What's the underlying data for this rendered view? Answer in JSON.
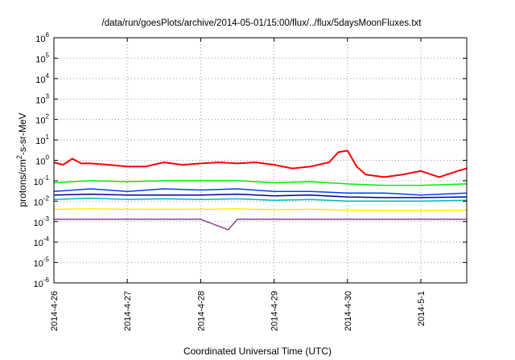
{
  "chart_data": {
    "type": "line",
    "title": "/data/run/goesPlots/archive/2014-05-01/15:00/flux/../flux/5daysMoonFluxes.txt",
    "xlabel": "Coordinated Universal Time (UTC)",
    "ylabel": {
      "base": "protons/cm",
      "sup": "2",
      "tail": "-s-sr-MeV"
    },
    "y_scale": "log",
    "ylim": [
      1e-06,
      1000000.0
    ],
    "xlim": [
      "2014-04-26 00:00",
      "2014-05-01 15:00"
    ],
    "grid": true,
    "legend": "none",
    "y_ticks": [
      {
        "base": "10",
        "exp": "-6",
        "value": 1e-06
      },
      {
        "base": "10",
        "exp": "-5",
        "value": 1e-05
      },
      {
        "base": "10",
        "exp": "-4",
        "value": 0.0001
      },
      {
        "base": "10",
        "exp": "-3",
        "value": 0.001
      },
      {
        "base": "10",
        "exp": "-2",
        "value": 0.01
      },
      {
        "base": "10",
        "exp": "-1",
        "value": 0.1
      },
      {
        "base": "10",
        "exp": "0",
        "value": 1
      },
      {
        "base": "10",
        "exp": "1",
        "value": 10.0
      },
      {
        "base": "10",
        "exp": "2",
        "value": 100.0
      },
      {
        "base": "10",
        "exp": "3",
        "value": 1000.0
      },
      {
        "base": "10",
        "exp": "4",
        "value": 10000.0
      },
      {
        "base": "10",
        "exp": "5",
        "value": 100000.0
      },
      {
        "base": "10",
        "exp": "6",
        "value": 1000000.0
      }
    ],
    "x_ticks": [
      {
        "label": "2014-4-26",
        "value": "2014-04-26 00:00"
      },
      {
        "label": "2014-4-27",
        "value": "2014-04-27 00:00"
      },
      {
        "label": "2014-4-28",
        "value": "2014-04-28 00:00"
      },
      {
        "label": "2014-4-29",
        "value": "2014-04-29 00:00"
      },
      {
        "label": "2014-4-30",
        "value": "2014-04-30 00:00"
      },
      {
        "label": "2014-5-1",
        "value": "2014-05-01 00:00"
      }
    ],
    "series": [
      {
        "color": "#ff0000",
        "width": 2,
        "x": [
          "2014-04-26 00:00",
          "2014-04-26 03:00",
          "2014-04-26 06:00",
          "2014-04-26 09:00",
          "2014-04-26 12:00",
          "2014-04-26 18:00",
          "2014-04-27 00:00",
          "2014-04-27 06:00",
          "2014-04-27 12:00",
          "2014-04-27 18:00",
          "2014-04-28 00:00",
          "2014-04-28 06:00",
          "2014-04-28 12:00",
          "2014-04-28 18:00",
          "2014-04-29 00:00",
          "2014-04-29 06:00",
          "2014-04-29 12:00",
          "2014-04-29 18:00",
          "2014-04-29 21:00",
          "2014-04-30 00:00",
          "2014-04-30 03:00",
          "2014-04-30 06:00",
          "2014-04-30 12:00",
          "2014-04-30 18:00",
          "2014-05-01 00:00",
          "2014-05-01 06:00",
          "2014-05-01 12:00",
          "2014-05-01 15:00"
        ],
        "y": [
          0.8,
          0.6,
          1.2,
          0.7,
          0.7,
          0.6,
          0.5,
          0.5,
          0.8,
          0.6,
          0.7,
          0.8,
          0.7,
          0.8,
          0.6,
          0.4,
          0.5,
          0.8,
          2.5,
          3,
          0.5,
          0.2,
          0.15,
          0.2,
          0.3,
          0.15,
          0.3,
          0.4
        ]
      },
      {
        "color": "#00ee00",
        "width": 1.5,
        "x": [
          "2014-04-26 00:00",
          "2014-04-26 12:00",
          "2014-04-27 00:00",
          "2014-04-27 12:00",
          "2014-04-28 00:00",
          "2014-04-28 12:00",
          "2014-04-29 00:00",
          "2014-04-29 12:00",
          "2014-04-30 00:00",
          "2014-04-30 12:00",
          "2014-05-01 00:00",
          "2014-05-01 15:00"
        ],
        "y": [
          0.08,
          0.1,
          0.09,
          0.1,
          0.1,
          0.1,
          0.08,
          0.09,
          0.07,
          0.06,
          0.06,
          0.07
        ]
      },
      {
        "color": "#0040ff",
        "width": 1.5,
        "x": [
          "2014-04-26 00:00",
          "2014-04-26 12:00",
          "2014-04-27 00:00",
          "2014-04-27 12:00",
          "2014-04-28 00:00",
          "2014-04-28 12:00",
          "2014-04-29 00:00",
          "2014-04-29 12:00",
          "2014-04-30 00:00",
          "2014-04-30 12:00",
          "2014-05-01 00:00",
          "2014-05-01 15:00"
        ],
        "y": [
          0.03,
          0.04,
          0.03,
          0.04,
          0.035,
          0.04,
          0.03,
          0.03,
          0.025,
          0.025,
          0.02,
          0.025
        ]
      },
      {
        "color": "#00bbbb",
        "width": 1.5,
        "x": [
          "2014-04-26 00:00",
          "2014-04-26 12:00",
          "2014-04-27 00:00",
          "2014-04-27 12:00",
          "2014-04-28 00:00",
          "2014-04-28 12:00",
          "2014-04-29 00:00",
          "2014-04-29 12:00",
          "2014-04-30 00:00",
          "2014-04-30 12:00",
          "2014-05-01 00:00",
          "2014-05-01 15:00"
        ],
        "y": [
          0.012,
          0.014,
          0.012,
          0.013,
          0.012,
          0.013,
          0.011,
          0.012,
          0.01,
          0.01,
          0.01,
          0.011
        ]
      },
      {
        "color": "#000099",
        "width": 1.5,
        "x": [
          "2014-04-26 00:00",
          "2014-04-26 12:00",
          "2014-04-27 00:00",
          "2014-04-27 12:00",
          "2014-04-28 00:00",
          "2014-04-28 12:00",
          "2014-04-29 00:00",
          "2014-04-29 12:00",
          "2014-04-30 00:00",
          "2014-04-30 12:00",
          "2014-05-01 00:00",
          "2014-05-01 15:00"
        ],
        "y": [
          0.02,
          0.022,
          0.02,
          0.02,
          0.02,
          0.022,
          0.018,
          0.02,
          0.016,
          0.015,
          0.015,
          0.016
        ]
      },
      {
        "color": "#ffee00",
        "width": 1.5,
        "x": [
          "2014-04-26 00:00",
          "2014-04-26 12:00",
          "2014-04-27 00:00",
          "2014-04-27 12:00",
          "2014-04-28 00:00",
          "2014-04-28 12:00",
          "2014-04-29 00:00",
          "2014-04-29 12:00",
          "2014-04-30 00:00",
          "2014-04-30 12:00",
          "2014-05-01 00:00",
          "2014-05-01 15:00"
        ],
        "y": [
          0.004,
          0.0042,
          0.004,
          0.0041,
          0.004,
          0.0042,
          0.0038,
          0.004,
          0.0036,
          0.0035,
          0.0035,
          0.0036
        ]
      },
      {
        "color": "#884488",
        "width": 1.5,
        "x": [
          "2014-04-26 00:00",
          "2014-04-26 12:00",
          "2014-04-27 00:00",
          "2014-04-27 12:00",
          "2014-04-28 00:00",
          "2014-04-28 09:00",
          "2014-04-28 12:00",
          "2014-04-29 00:00",
          "2014-04-29 12:00",
          "2014-04-30 00:00",
          "2014-04-30 12:00",
          "2014-05-01 00:00",
          "2014-05-01 15:00"
        ],
        "y": [
          0.0013,
          0.0013,
          0.0013,
          0.0013,
          0.0013,
          0.0004,
          0.0013,
          0.0013,
          0.0013,
          0.0013,
          0.0013,
          0.0013,
          0.0013
        ]
      }
    ]
  }
}
